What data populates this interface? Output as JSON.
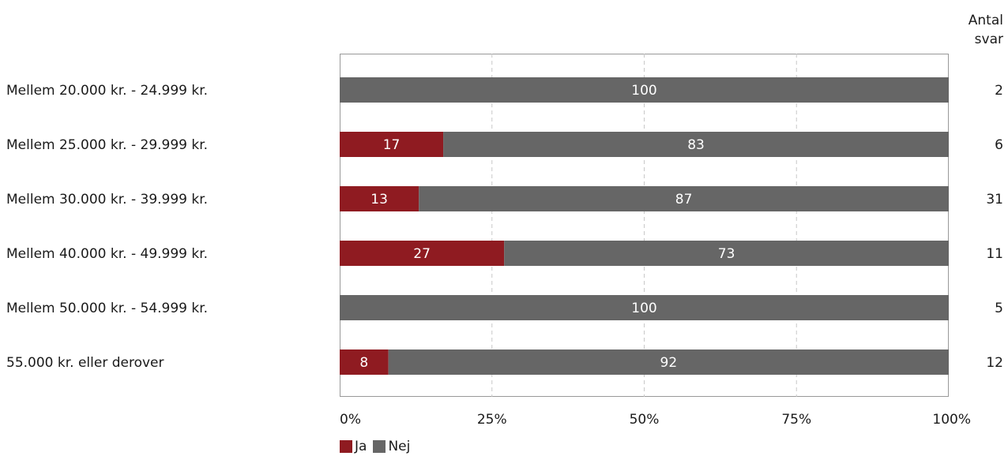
{
  "chart_data": {
    "type": "bar",
    "orientation": "horizontal",
    "stacked": true,
    "categories": [
      "Mellem 20.000 kr. - 24.999 kr.",
      "Mellem 25.000 kr. - 29.999 kr.",
      "Mellem 30.000 kr. - 39.999 kr.",
      "Mellem 40.000 kr. - 49.999 kr.",
      "Mellem 50.000 kr. - 54.999 kr.",
      "55.000 kr. eller derover"
    ],
    "series": [
      {
        "name": "Ja",
        "color": "#8f1b21",
        "values": [
          0,
          17,
          13,
          27,
          0,
          8
        ]
      },
      {
        "name": "Nej",
        "color": "#666666",
        "values": [
          100,
          83,
          87,
          73,
          100,
          92
        ]
      }
    ],
    "x_ticks": [
      "0%",
      "25%",
      "50%",
      "75%",
      "100%"
    ],
    "xlim": [
      0,
      100
    ],
    "grid": true,
    "legend_position": "bottom-left",
    "count_header": [
      "Antal",
      "svar"
    ],
    "counts": [
      "2",
      "6",
      "31",
      "11",
      "5",
      "12"
    ]
  }
}
